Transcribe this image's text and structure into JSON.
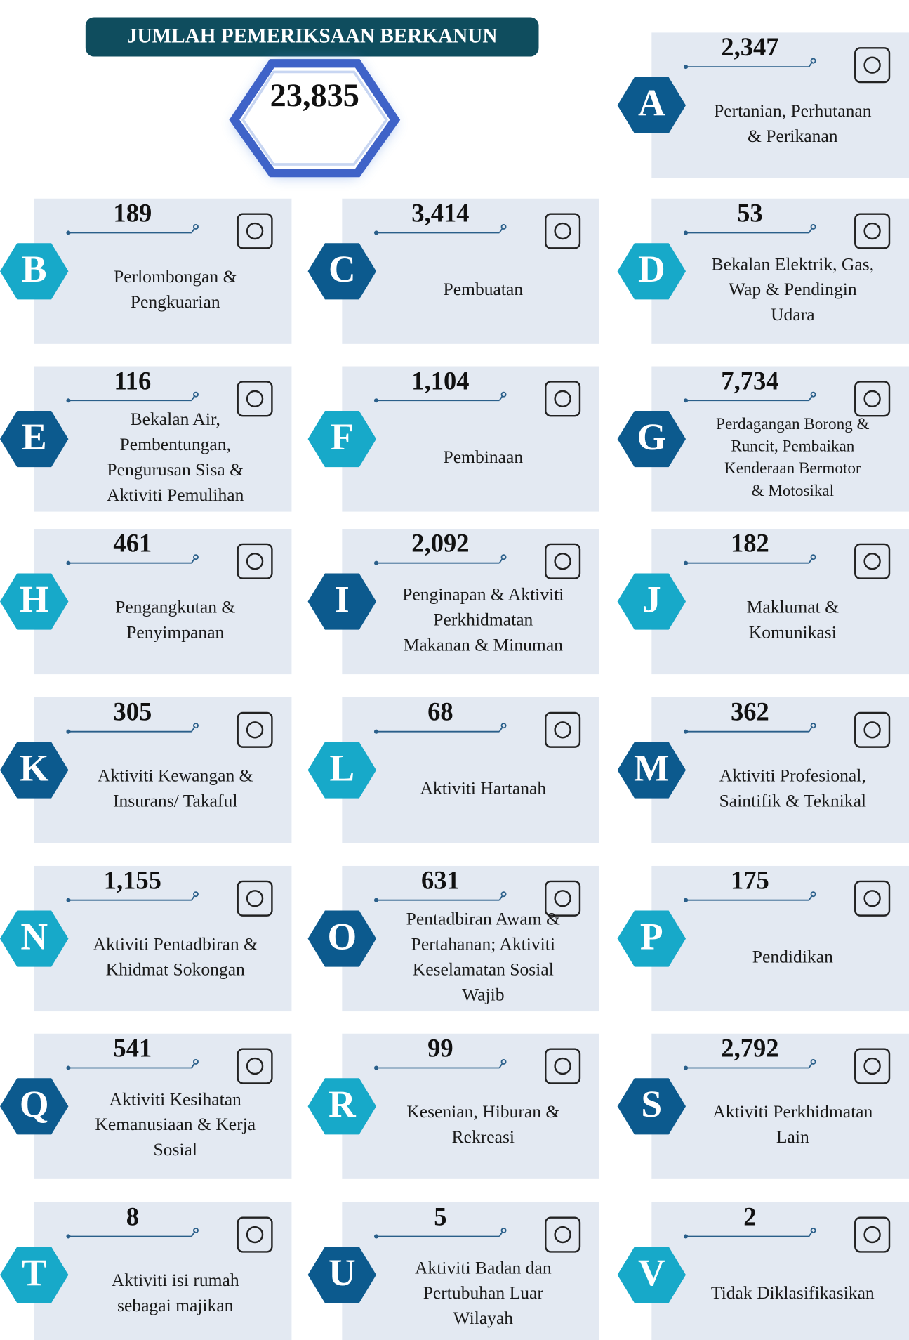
{
  "header": {
    "title": "JUMLAH PEMERIKSAAN BERKANUN",
    "total": "23,835"
  },
  "sectors": [
    {
      "letter": "A",
      "value": "2,347",
      "label_lines": [
        "Pertanian, Perhutanan",
        "& Perikanan"
      ]
    },
    {
      "letter": "B",
      "value": "189",
      "label_lines": [
        "Perlombongan &",
        "Pengkuarian"
      ]
    },
    {
      "letter": "C",
      "value": "3,414",
      "label_lines": [
        "Pembuatan"
      ]
    },
    {
      "letter": "D",
      "value": "53",
      "label_lines": [
        "Bekalan Elektrik, Gas,",
        "Wap & Pendingin",
        "Udara"
      ]
    },
    {
      "letter": "E",
      "value": "116",
      "label_lines": [
        "Bekalan Air,",
        "Pembentungan,",
        "Pengurusan Sisa &",
        "Aktiviti Pemulihan"
      ]
    },
    {
      "letter": "F",
      "value": "1,104",
      "label_lines": [
        "Pembinaan"
      ]
    },
    {
      "letter": "G",
      "value": "7,734",
      "label_lines": [
        "Perdagangan Borong &",
        "Runcit, Pembaikan",
        "Kenderaan Bermotor",
        "& Motosikal"
      ]
    },
    {
      "letter": "H",
      "value": "461",
      "label_lines": [
        "Pengangkutan &",
        "Penyimpanan"
      ]
    },
    {
      "letter": "I",
      "value": "2,092",
      "label_lines": [
        "Penginapan & Aktiviti",
        "Perkhidmatan",
        "Makanan & Minuman"
      ]
    },
    {
      "letter": "J",
      "value": "182",
      "label_lines": [
        "Maklumat &",
        "Komunikasi"
      ]
    },
    {
      "letter": "K",
      "value": "305",
      "label_lines": [
        "Aktiviti Kewangan &",
        "Insurans/ Takaful"
      ]
    },
    {
      "letter": "L",
      "value": "68",
      "label_lines": [
        "Aktiviti Hartanah"
      ]
    },
    {
      "letter": "M",
      "value": "362",
      "label_lines": [
        "Aktiviti Profesional,",
        "Saintifik & Teknikal"
      ]
    },
    {
      "letter": "N",
      "value": "1,155",
      "label_lines": [
        "Aktiviti Pentadbiran &",
        "Khidmat Sokongan"
      ]
    },
    {
      "letter": "O",
      "value": "631",
      "label_lines": [
        "Pentadbiran Awam &",
        "Pertahanan; Aktiviti",
        "Keselamatan Sosial",
        "Wajib"
      ]
    },
    {
      "letter": "P",
      "value": "175",
      "label_lines": [
        "Pendidikan"
      ]
    },
    {
      "letter": "Q",
      "value": "541",
      "label_lines": [
        "Aktiviti Kesihatan",
        "Kemanusiaan & Kerja",
        "Sosial"
      ]
    },
    {
      "letter": "R",
      "value": "99",
      "label_lines": [
        "Kesenian, Hiburan &",
        "Rekreasi"
      ]
    },
    {
      "letter": "S",
      "value": "2,792",
      "label_lines": [
        "Aktiviti Perkhidmatan",
        "Lain"
      ]
    },
    {
      "letter": "T",
      "value": "8",
      "label_lines": [
        "Aktiviti isi rumah",
        "sebagai majikan"
      ]
    },
    {
      "letter": "U",
      "value": "5",
      "label_lines": [
        "Aktiviti Badan dan",
        "Pertubuhan Luar",
        "Wilayah"
      ]
    },
    {
      "letter": "V",
      "value": "2",
      "label_lines": [
        "Tidak Diklasifikasikan"
      ]
    }
  ]
}
